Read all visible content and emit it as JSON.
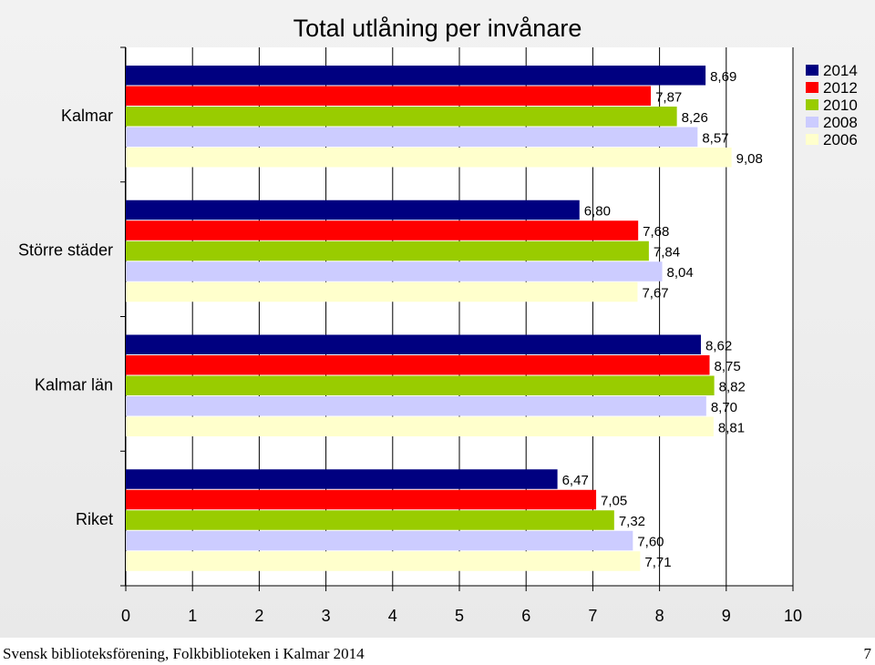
{
  "chart_data": {
    "type": "bar",
    "orientation": "horizontal",
    "title": "Total utlåning per invånare",
    "xlabel": "",
    "ylabel": "",
    "xlim": [
      0,
      10
    ],
    "x_ticks": [
      "0",
      "1",
      "2",
      "3",
      "4",
      "5",
      "6",
      "7",
      "8",
      "9",
      "10"
    ],
    "grid": true,
    "legend_position": "top-right",
    "categories": [
      "Kalmar",
      "Större städer",
      "Kalmar län",
      "Riket"
    ],
    "series": [
      {
        "name": "2014",
        "color": "#000080",
        "values": [
          8.69,
          6.8,
          8.62,
          6.47
        ],
        "labels": [
          "8,69",
          "6,80",
          "8,62",
          "6,47"
        ]
      },
      {
        "name": "2012",
        "color": "#ff0000",
        "values": [
          7.87,
          7.68,
          8.75,
          7.05
        ],
        "labels": [
          "7,87",
          "7,68",
          "8,75",
          "7,05"
        ]
      },
      {
        "name": "2010",
        "color": "#99cc00",
        "values": [
          8.26,
          7.84,
          8.82,
          7.32
        ],
        "labels": [
          "8,26",
          "7,84",
          "8,82",
          "7,32"
        ]
      },
      {
        "name": "2008",
        "color": "#ccccff",
        "values": [
          8.57,
          8.04,
          8.7,
          7.6
        ],
        "labels": [
          "8,57",
          "8,04",
          "8,70",
          "7,60"
        ]
      },
      {
        "name": "2006",
        "color": "#ffffcc",
        "values": [
          9.08,
          7.67,
          8.81,
          7.71
        ],
        "labels": [
          "9,08",
          "7,67",
          "8,81",
          "7,71"
        ]
      }
    ]
  },
  "footer": {
    "text": "Svensk biblioteksförening, Folkbiblioteken i Kalmar 2014",
    "page_number": "7"
  }
}
